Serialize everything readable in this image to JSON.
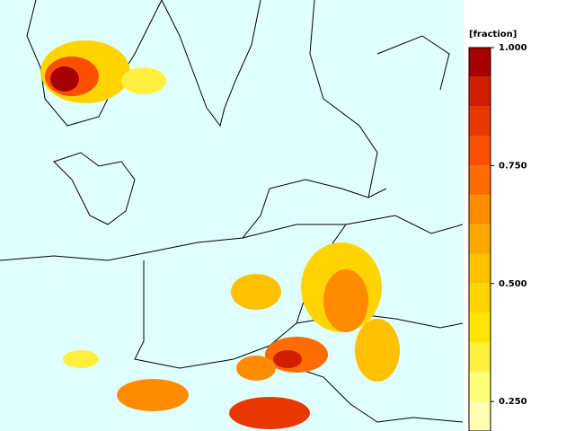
{
  "colorbar": {
    "title": "[fraction]",
    "lim": [
      0.1875,
      1.0
    ],
    "ticks": [
      {
        "value": 1.0,
        "label": "1.000"
      },
      {
        "value": 0.75,
        "label": "0.750"
      },
      {
        "value": 0.5,
        "label": "0.500"
      },
      {
        "value": 0.25,
        "label": "0.250"
      }
    ],
    "bands": [
      {
        "from": 0.9375,
        "to": 1.0,
        "color": "#a80000"
      },
      {
        "from": 0.875,
        "to": 0.9375,
        "color": "#d01e00"
      },
      {
        "from": 0.8125,
        "to": 0.875,
        "color": "#e83800"
      },
      {
        "from": 0.75,
        "to": 0.8125,
        "color": "#f85000"
      },
      {
        "from": 0.6875,
        "to": 0.75,
        "color": "#ff6c00"
      },
      {
        "from": 0.625,
        "to": 0.6875,
        "color": "#ff8c00"
      },
      {
        "from": 0.5625,
        "to": 0.625,
        "color": "#ffa800"
      },
      {
        "from": 0.5,
        "to": 0.5625,
        "color": "#ffc000"
      },
      {
        "from": 0.4375,
        "to": 0.5,
        "color": "#ffd400"
      },
      {
        "from": 0.375,
        "to": 0.4375,
        "color": "#ffe400"
      },
      {
        "from": 0.3125,
        "to": 0.375,
        "color": "#fff040"
      },
      {
        "from": 0.25,
        "to": 0.3125,
        "color": "#ffff78"
      },
      {
        "from": 0.1875,
        "to": 0.25,
        "color": "#ffffb4"
      }
    ]
  }
}
